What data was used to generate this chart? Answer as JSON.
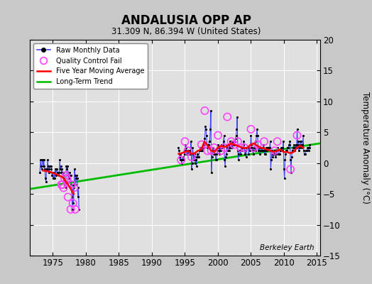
{
  "title": "ANDALUSIA OPP AP",
  "subtitle": "31.309 N, 86.394 W (United States)",
  "ylabel": "Temperature Anomaly (°C)",
  "watermark": "Berkeley Earth",
  "xlim": [
    1971.5,
    2015.5
  ],
  "ylim": [
    -15,
    20
  ],
  "yticks": [
    -15,
    -10,
    -5,
    0,
    5,
    10,
    15,
    20
  ],
  "xticks": [
    1975,
    1980,
    1985,
    1990,
    1995,
    2000,
    2005,
    2010,
    2015
  ],
  "bg_color": "#c8c8c8",
  "plot_bg_color": "#e0e0e0",
  "raw_color": "#4444ff",
  "qc_color": "#ff44ff",
  "moving_avg_color": "#ff0000",
  "trend_color": "#00bb00",
  "segment1_years": [
    1973,
    1973,
    1973,
    1973,
    1973,
    1973,
    1973,
    1973,
    1973,
    1973,
    1973,
    1973,
    1974,
    1974,
    1974,
    1974,
    1974,
    1974,
    1974,
    1974,
    1974,
    1974,
    1974,
    1974,
    1975,
    1975,
    1975,
    1975,
    1975,
    1975,
    1975,
    1975,
    1975,
    1975,
    1975,
    1975,
    1976,
    1976,
    1976,
    1976,
    1976,
    1976,
    1976,
    1976,
    1976,
    1976,
    1976,
    1976,
    1977,
    1977,
    1977,
    1977,
    1977,
    1977,
    1977,
    1977,
    1977,
    1977,
    1977,
    1977,
    1978,
    1978,
    1978,
    1978,
    1978,
    1978,
    1978,
    1978,
    1978,
    1978,
    1978,
    1978
  ],
  "segment1_months": [
    1,
    2,
    3,
    4,
    5,
    6,
    7,
    8,
    9,
    10,
    11,
    12,
    1,
    2,
    3,
    4,
    5,
    6,
    7,
    8,
    9,
    10,
    11,
    12,
    1,
    2,
    3,
    4,
    5,
    6,
    7,
    8,
    9,
    10,
    11,
    12,
    1,
    2,
    3,
    4,
    5,
    6,
    7,
    8,
    9,
    10,
    11,
    12,
    1,
    2,
    3,
    4,
    5,
    6,
    7,
    8,
    9,
    10,
    11,
    12,
    1,
    2,
    3,
    4,
    5,
    6,
    7,
    8,
    9,
    10,
    11,
    12
  ],
  "segment1_values": [
    -1.5,
    0.5,
    -0.5,
    -1.0,
    0.5,
    0.5,
    -0.5,
    0.5,
    -0.5,
    -1.0,
    -2.5,
    -3.0,
    -1.0,
    -1.0,
    0.5,
    -0.5,
    -1.5,
    -1.0,
    -0.5,
    -0.5,
    -0.5,
    -1.0,
    -2.0,
    -1.5,
    -2.5,
    -2.5,
    -1.5,
    -2.5,
    -1.0,
    -2.0,
    -1.0,
    -1.0,
    -1.5,
    -1.5,
    -1.5,
    -2.0,
    0.5,
    -1.0,
    -0.5,
    -1.5,
    -1.0,
    -1.5,
    -1.5,
    -2.0,
    -2.5,
    -3.5,
    -3.5,
    -4.0,
    -0.5,
    -1.0,
    -0.5,
    -1.5,
    -2.0,
    -2.5,
    -1.5,
    -2.0,
    -2.0,
    -3.5,
    -5.5,
    -7.5,
    -3.5,
    -6.5,
    -4.0,
    -1.0,
    -2.0,
    -3.5,
    -2.5,
    -2.0,
    -2.5,
    -5.5,
    -4.0,
    -7.5
  ],
  "segment2_years": [
    1994,
    1994,
    1994,
    1994,
    1994,
    1994,
    1994,
    1994,
    1994,
    1994,
    1994,
    1994,
    1995,
    1995,
    1995,
    1995,
    1995,
    1995,
    1995,
    1995,
    1995,
    1995,
    1995,
    1995,
    1996,
    1996,
    1996,
    1996,
    1996,
    1996,
    1996,
    1996,
    1996,
    1996,
    1996,
    1996,
    1997,
    1997,
    1997,
    1997,
    1997,
    1997,
    1997,
    1997,
    1997,
    1997,
    1997,
    1997,
    1998,
    1998,
    1998,
    1998,
    1998,
    1998,
    1998,
    1998,
    1998,
    1998,
    1998,
    1998,
    1999,
    1999,
    1999,
    1999,
    1999,
    1999,
    1999,
    1999,
    1999,
    1999,
    1999,
    1999,
    2000,
    2000,
    2000,
    2000,
    2000,
    2000,
    2000,
    2000,
    2000,
    2000,
    2000,
    2000,
    2001,
    2001,
    2001,
    2001,
    2001,
    2001,
    2001,
    2001,
    2001,
    2001,
    2001,
    2001,
    2002,
    2002,
    2002,
    2002,
    2002,
    2002,
    2002,
    2002,
    2002,
    2002,
    2002,
    2002,
    2003,
    2003,
    2003,
    2003,
    2003,
    2003,
    2003,
    2003,
    2003,
    2003,
    2003,
    2003,
    2004,
    2004,
    2004,
    2004,
    2004,
    2004,
    2004,
    2004,
    2004,
    2004,
    2004,
    2004,
    2005,
    2005,
    2005,
    2005,
    2005,
    2005,
    2005,
    2005,
    2005,
    2005,
    2005,
    2005,
    2006,
    2006,
    2006,
    2006,
    2006,
    2006,
    2006,
    2006,
    2006,
    2006,
    2006,
    2006,
    2007,
    2007,
    2007,
    2007,
    2007,
    2007,
    2007,
    2007,
    2007,
    2007,
    2007,
    2007,
    2008,
    2008,
    2008,
    2008,
    2008,
    2008,
    2008,
    2008,
    2008,
    2008,
    2008,
    2008,
    2009,
    2009,
    2009,
    2009,
    2009,
    2009,
    2009,
    2009,
    2009,
    2009,
    2009,
    2009,
    2010,
    2010,
    2010,
    2010,
    2010,
    2010,
    2010,
    2010,
    2010,
    2010,
    2010,
    2010,
    2011,
    2011,
    2011,
    2011,
    2011,
    2011,
    2011,
    2011,
    2011,
    2011,
    2011,
    2011,
    2012,
    2012,
    2012,
    2012,
    2012,
    2012,
    2012,
    2012,
    2012,
    2012,
    2012,
    2012,
    2013,
    2013,
    2013,
    2013,
    2013,
    2013,
    2013,
    2013,
    2013,
    2013,
    2013,
    2013
  ],
  "segment2_months": [
    1,
    2,
    3,
    4,
    5,
    6,
    7,
    8,
    9,
    10,
    11,
    12,
    1,
    2,
    3,
    4,
    5,
    6,
    7,
    8,
    9,
    10,
    11,
    12,
    1,
    2,
    3,
    4,
    5,
    6,
    7,
    8,
    9,
    10,
    11,
    12,
    1,
    2,
    3,
    4,
    5,
    6,
    7,
    8,
    9,
    10,
    11,
    12,
    1,
    2,
    3,
    4,
    5,
    6,
    7,
    8,
    9,
    10,
    11,
    12,
    1,
    2,
    3,
    4,
    5,
    6,
    7,
    8,
    9,
    10,
    11,
    12,
    1,
    2,
    3,
    4,
    5,
    6,
    7,
    8,
    9,
    10,
    11,
    12,
    1,
    2,
    3,
    4,
    5,
    6,
    7,
    8,
    9,
    10,
    11,
    12,
    1,
    2,
    3,
    4,
    5,
    6,
    7,
    8,
    9,
    10,
    11,
    12,
    1,
    2,
    3,
    4,
    5,
    6,
    7,
    8,
    9,
    10,
    11,
    12,
    1,
    2,
    3,
    4,
    5,
    6,
    7,
    8,
    9,
    10,
    11,
    12,
    1,
    2,
    3,
    4,
    5,
    6,
    7,
    8,
    9,
    10,
    11,
    12,
    1,
    2,
    3,
    4,
    5,
    6,
    7,
    8,
    9,
    10,
    11,
    12,
    1,
    2,
    3,
    4,
    5,
    6,
    7,
    8,
    9,
    10,
    11,
    12,
    1,
    2,
    3,
    4,
    5,
    6,
    7,
    8,
    9,
    10,
    11,
    12,
    1,
    2,
    3,
    4,
    5,
    6,
    7,
    8,
    9,
    10,
    11,
    12,
    1,
    2,
    3,
    4,
    5,
    6,
    7,
    8,
    9,
    10,
    11,
    12,
    1,
    2,
    3,
    4,
    5,
    6,
    7,
    8,
    9,
    10,
    11,
    12,
    1,
    2,
    3,
    4,
    5,
    6,
    7,
    8,
    9,
    10,
    11,
    12,
    1,
    2,
    3,
    4,
    5,
    6,
    7,
    8,
    9,
    10,
    11,
    12
  ],
  "segment2_values": [
    2.5,
    2.0,
    1.0,
    0.5,
    1.5,
    0.5,
    0.0,
    0.5,
    1.0,
    0.5,
    0.5,
    1.5,
    2.0,
    3.0,
    2.5,
    1.5,
    1.5,
    2.0,
    1.5,
    2.0,
    1.5,
    1.5,
    2.0,
    3.5,
    -1.0,
    0.0,
    2.5,
    1.5,
    0.5,
    1.5,
    1.0,
    0.0,
    0.5,
    -0.5,
    1.5,
    1.0,
    1.0,
    1.0,
    2.0,
    2.0,
    2.5,
    2.0,
    2.0,
    2.5,
    2.0,
    2.5,
    2.5,
    3.0,
    4.0,
    6.0,
    5.5,
    4.5,
    3.0,
    2.5,
    2.5,
    3.0,
    3.5,
    3.5,
    5.5,
    8.5,
    -1.5,
    1.0,
    2.0,
    2.5,
    1.5,
    2.0,
    1.5,
    1.5,
    0.5,
    0.5,
    1.5,
    2.0,
    3.0,
    2.5,
    2.0,
    1.5,
    2.5,
    2.0,
    3.0,
    2.5,
    2.5,
    3.0,
    3.5,
    4.5,
    0.5,
    -0.5,
    1.0,
    1.5,
    3.0,
    2.5,
    2.0,
    3.0,
    2.0,
    2.5,
    3.5,
    2.5,
    3.5,
    3.0,
    2.5,
    3.5,
    3.0,
    3.0,
    3.0,
    3.5,
    4.0,
    4.5,
    5.5,
    7.5,
    2.0,
    0.5,
    1.5,
    2.0,
    2.0,
    1.5,
    2.0,
    2.5,
    2.0,
    2.5,
    3.0,
    3.5,
    2.5,
    1.5,
    2.0,
    1.0,
    2.5,
    2.5,
    2.5,
    2.5,
    1.5,
    2.5,
    2.0,
    2.5,
    4.5,
    3.0,
    2.5,
    2.0,
    1.5,
    2.0,
    2.5,
    2.5,
    2.0,
    3.5,
    4.5,
    5.5,
    4.5,
    2.5,
    2.0,
    2.5,
    1.5,
    2.0,
    2.5,
    2.5,
    2.0,
    2.0,
    2.5,
    3.0,
    2.0,
    1.5,
    1.5,
    2.0,
    2.5,
    2.0,
    2.5,
    2.5,
    2.5,
    2.5,
    2.5,
    3.5,
    -1.0,
    0.5,
    2.0,
    1.5,
    1.0,
    1.5,
    1.5,
    2.0,
    1.5,
    1.0,
    1.5,
    2.0,
    2.5,
    2.0,
    1.5,
    1.5,
    1.5,
    2.0,
    2.0,
    2.5,
    2.5,
    2.0,
    2.5,
    3.5,
    -1.0,
    -2.5,
    0.5,
    1.5,
    2.0,
    2.0,
    2.5,
    2.5,
    2.5,
    3.0,
    3.0,
    3.5,
    0.5,
    -1.5,
    1.0,
    2.0,
    2.0,
    2.5,
    3.0,
    2.5,
    2.0,
    2.5,
    3.0,
    2.5,
    5.5,
    3.0,
    3.5,
    2.0,
    2.5,
    3.0,
    3.5,
    3.5,
    2.5,
    3.0,
    3.0,
    4.5,
    2.0,
    1.5,
    1.5,
    1.5,
    2.0,
    2.0,
    2.0,
    2.5,
    2.5,
    2.0,
    2.5,
    3.0
  ],
  "qc_fail_x": [
    1976.29,
    1976.46,
    1976.63,
    1976.79,
    1976.96,
    1977.13,
    1977.29,
    1977.71,
    1977.88,
    1978.04,
    1978.21,
    1978.38,
    1994.46,
    1995.04,
    1995.46,
    1996.04,
    1997.54,
    1998.04,
    1998.46,
    1999.04,
    1999.46,
    2000.04,
    2000.46,
    2001.04,
    2001.46,
    2002.04,
    2002.46,
    2003.04,
    2003.46,
    2004.04,
    2005.04,
    2005.46,
    2006.04,
    2007.04,
    2008.63,
    2009.04,
    2011.04,
    2012.04
  ],
  "qc_fail_y": [
    -3.5,
    -3.5,
    -4.0,
    -2.5,
    -2.0,
    -2.5,
    -5.5,
    -7.5,
    -3.5,
    -6.5,
    -4.0,
    -7.5,
    0.5,
    3.5,
    2.0,
    1.0,
    3.0,
    8.5,
    2.0,
    2.0,
    2.5,
    4.5,
    2.0,
    2.5,
    7.5,
    3.5,
    3.0,
    3.5,
    2.5,
    2.5,
    5.5,
    2.5,
    3.0,
    3.5,
    2.0,
    3.5,
    -1.0,
    4.5
  ],
  "ma_seg1_x": [
    1973.5,
    1974.5,
    1975.5,
    1976.5,
    1977.5,
    1978.17
  ],
  "ma_seg1_y": [
    -1.2,
    -1.4,
    -1.8,
    -2.3,
    -3.8,
    -5.0
  ],
  "ma_seg2_x": [
    1994.08,
    1994.5,
    1995.0,
    1995.5,
    1996.0,
    1996.5,
    1997.0,
    1997.5,
    1998.0,
    1998.5,
    1999.0,
    1999.5,
    2000.0,
    2000.5,
    2001.0,
    2001.5,
    2002.0,
    2002.5,
    2003.0,
    2003.5,
    2004.0,
    2004.5,
    2005.0,
    2005.5,
    2006.0,
    2006.5,
    2007.0,
    2007.5,
    2008.0,
    2008.5,
    2009.0,
    2009.5,
    2010.0,
    2010.5,
    2011.0,
    2011.5,
    2012.0,
    2012.5,
    2013.0
  ],
  "ma_seg2_y": [
    1.5,
    1.6,
    1.8,
    2.0,
    1.5,
    1.6,
    2.0,
    2.2,
    3.5,
    2.8,
    2.0,
    1.8,
    2.5,
    2.8,
    2.6,
    2.8,
    3.2,
    3.0,
    2.8,
    2.6,
    2.4,
    2.5,
    3.0,
    3.2,
    2.8,
    2.5,
    2.4,
    2.2,
    2.0,
    1.8,
    2.0,
    2.2,
    1.8,
    1.8,
    1.6,
    1.8,
    2.5,
    2.8,
    2.5
  ],
  "trend_x": [
    1971.5,
    2015.5
  ],
  "trend_y": [
    -4.2,
    3.2
  ]
}
